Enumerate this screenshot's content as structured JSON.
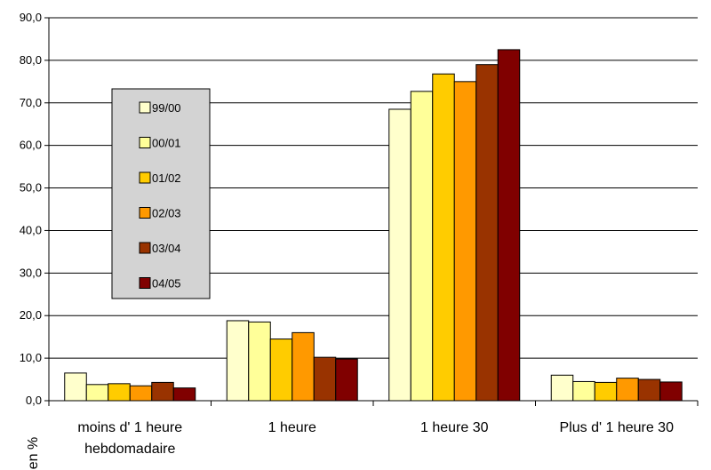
{
  "chart_data": {
    "type": "bar",
    "categories": [
      [
        "moins d' 1 heure",
        "hebdomadaire"
      ],
      [
        "1  heure"
      ],
      [
        "1  heure 30"
      ],
      [
        "Plus d' 1  heure 30"
      ]
    ],
    "series": [
      {
        "name": "99/00",
        "color": "#FFFFCC",
        "values": [
          6.5,
          18.8,
          68.5,
          6.0
        ]
      },
      {
        "name": "00/01",
        "color": "#FFFF99",
        "values": [
          3.8,
          18.5,
          72.7,
          4.5
        ]
      },
      {
        "name": "01/02",
        "color": "#FFCC00",
        "values": [
          4.0,
          14.5,
          76.8,
          4.3
        ]
      },
      {
        "name": "02/03",
        "color": "#FF9900",
        "values": [
          3.5,
          16.0,
          75.0,
          5.3
        ]
      },
      {
        "name": "03/04",
        "color": "#993300",
        "values": [
          4.3,
          10.2,
          79.0,
          5.0
        ]
      },
      {
        "name": "04/05",
        "color": "#800000",
        "values": [
          3.0,
          9.8,
          82.5,
          4.4
        ]
      }
    ],
    "ylabel": "en %",
    "ylim": [
      0,
      90
    ],
    "yticks": [
      "0,0",
      "10,0",
      "20,0",
      "30,0",
      "40,0",
      "50,0",
      "60,0",
      "70,0",
      "80,0",
      "90,0"
    ],
    "grid": true,
    "legend_position": "inside-left"
  }
}
